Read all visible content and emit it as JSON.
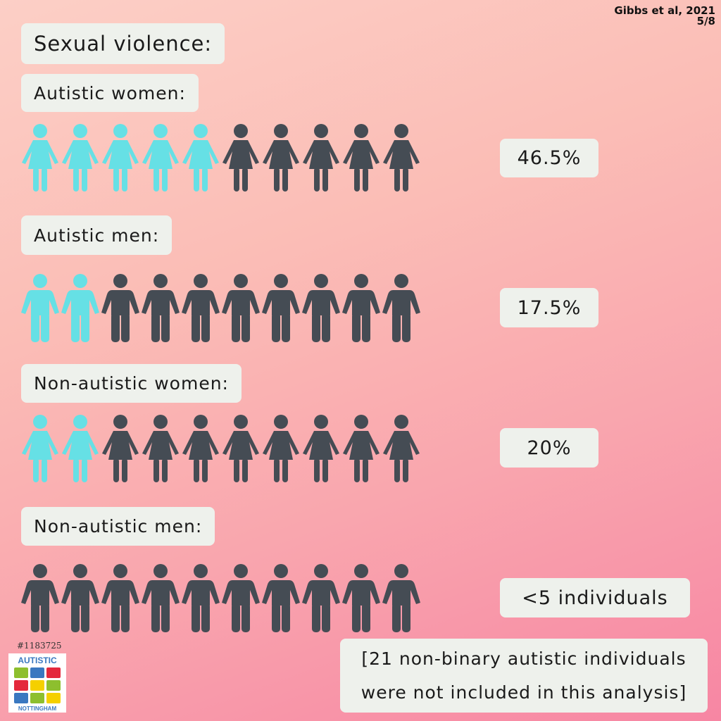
{
  "citation": {
    "source": "Gibbs et al, 2021",
    "page": "5/8"
  },
  "title": "Sexual violence:",
  "colors": {
    "highlight": "#66e0e5",
    "base": "#454c54"
  },
  "chart_data": {
    "type": "pictogram",
    "icons_per_row": 10,
    "groups": [
      {
        "label": "Autistic women:",
        "icon": "woman-icon",
        "highlighted": 5,
        "value_text": "46.5%"
      },
      {
        "label": "Autistic men:",
        "icon": "man-icon",
        "highlighted": 2,
        "value_text": "17.5%"
      },
      {
        "label": "Non-autistic women:",
        "icon": "woman-icon",
        "highlighted": 2,
        "value_text": "20%"
      },
      {
        "label": "Non-autistic men:",
        "icon": "man-icon",
        "highlighted": 0,
        "value_text": "<5 individuals"
      }
    ]
  },
  "note": {
    "line1": "[21 non-binary autistic individuals",
    "line2": "were not included in this analysis]"
  },
  "logo": {
    "tag": "#1183725",
    "top": "AUTISTIC",
    "bottom": "NOTTINGHAM",
    "colors": [
      "#8dbf2e",
      "#3a78c0",
      "#e4283c",
      "#e4283c",
      "#f5d000",
      "#8dbf2e",
      "#3a78c0",
      "#8dbf2e",
      "#f5d000"
    ]
  }
}
